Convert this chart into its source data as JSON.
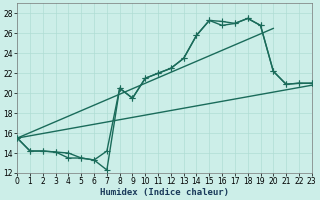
{
  "xlabel": "Humidex (Indice chaleur)",
  "bg_color": "#cceee8",
  "grid_color": "#b0ddd4",
  "line_color": "#1a6b5a",
  "xlim": [
    0,
    23
  ],
  "ylim": [
    12,
    29
  ],
  "xticks": [
    0,
    1,
    2,
    3,
    4,
    5,
    6,
    7,
    8,
    9,
    10,
    11,
    12,
    13,
    14,
    15,
    16,
    17,
    18,
    19,
    20,
    21,
    22,
    23
  ],
  "yticks": [
    12,
    14,
    16,
    18,
    20,
    22,
    24,
    26,
    28
  ],
  "line1_x": [
    0,
    1,
    2,
    3,
    4,
    5,
    6,
    7,
    8,
    9,
    10,
    11,
    12,
    13,
    14,
    15,
    16,
    17,
    18,
    19,
    20,
    21,
    22,
    23
  ],
  "line1_y": [
    15.5,
    14.2,
    14.2,
    14.1,
    13.5,
    13.5,
    13.3,
    12.3,
    20.5,
    19.5,
    21.5,
    22.0,
    22.5,
    23.5,
    25.8,
    27.3,
    27.2,
    27.0,
    27.5,
    26.8,
    22.2,
    20.9,
    21.0,
    21.0
  ],
  "line2_x": [
    0,
    1,
    2,
    3,
    4,
    5,
    6,
    7,
    8,
    9,
    10,
    11,
    12,
    13,
    14,
    15,
    16,
    17,
    18,
    19,
    20,
    21,
    22,
    23
  ],
  "line2_y": [
    15.5,
    14.2,
    14.2,
    14.1,
    14.0,
    13.5,
    13.3,
    14.2,
    20.5,
    19.5,
    21.5,
    22.0,
    22.5,
    23.5,
    25.8,
    27.3,
    26.8,
    27.0,
    27.5,
    26.8,
    22.2,
    20.9,
    21.0,
    21.0
  ],
  "line3_x": [
    0,
    20
  ],
  "line3_y": [
    15.5,
    26.5
  ],
  "line4_x": [
    0,
    23
  ],
  "line4_y": [
    15.5,
    20.8
  ],
  "marker_size": 4,
  "lw": 1.0
}
